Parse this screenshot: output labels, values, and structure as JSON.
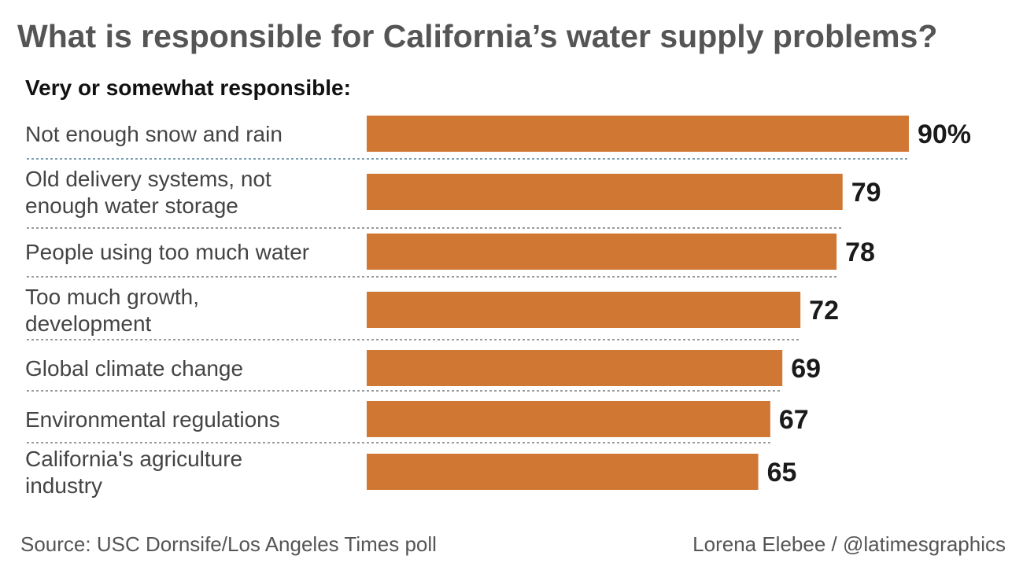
{
  "title": "What is responsible for California’s water supply problems?",
  "subtitle": "Very or somewhat responsible:",
  "source": "Source: USC Dornsife/Los Angeles Times poll",
  "credit": "Lorena Elebee / @latimesgraphics",
  "colors": {
    "bar": "#D17734",
    "divider": "#9a9a9a",
    "divider_first": "#7a9fb0"
  },
  "chart_data": {
    "type": "bar",
    "orientation": "horizontal",
    "value_unit": "%",
    "xlim": [
      0,
      100
    ],
    "grid": false,
    "categories": [
      [
        "Not enough snow and rain"
      ],
      [
        "Old delivery systems, not",
        "enough water storage"
      ],
      [
        "People using too much water"
      ],
      [
        "Too much growth,",
        "development"
      ],
      [
        "Global climate change"
      ],
      [
        "Environmental regulations"
      ],
      [
        "California's agriculture",
        "industry"
      ]
    ],
    "values": [
      90,
      79,
      78,
      72,
      69,
      67,
      65
    ],
    "value_labels": [
      "90%",
      "79",
      "78",
      "72",
      "69",
      "67",
      "65"
    ]
  }
}
